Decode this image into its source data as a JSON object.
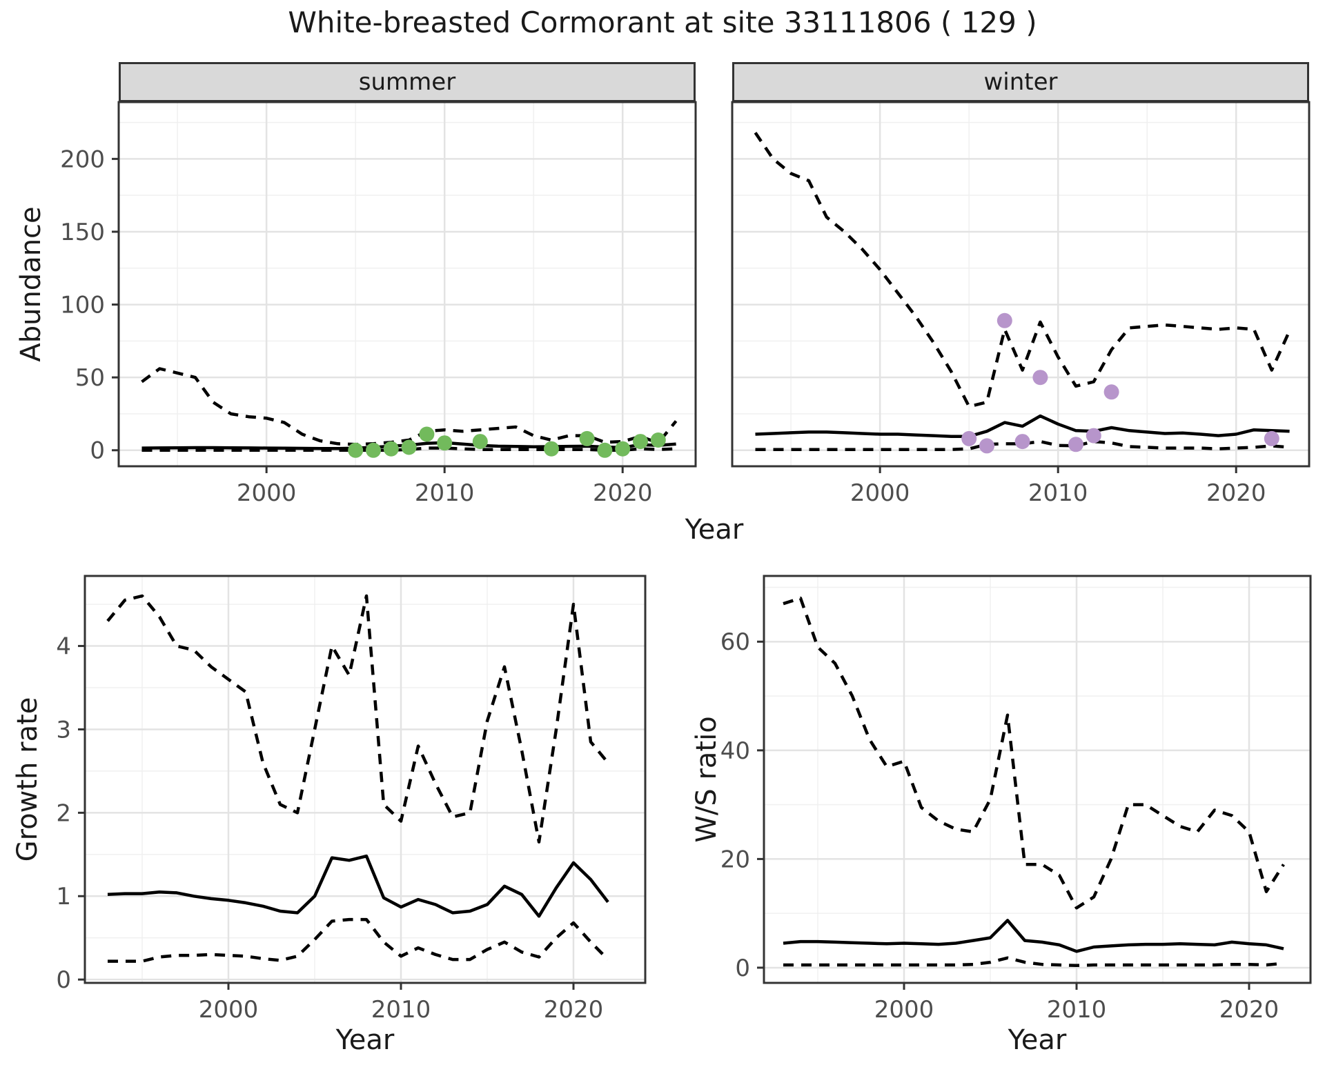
{
  "title": "White-breasted Cormorant at site 33111806 ( 129 )",
  "colors": {
    "line": "#000000",
    "summer_point": "#72BA5C",
    "winter_point": "#B795CB",
    "strip_bg": "#d9d9d9",
    "panel_border": "#333333",
    "grid_major": "#e3e3e3",
    "grid_minor": "#f0f0f0",
    "tick_text": "#4d4d4d"
  },
  "chart_data": [
    {
      "id": "abundance-summer",
      "type": "line",
      "facet_label": "summer",
      "xlabel": "Year",
      "ylabel": "Abundance",
      "xlim": [
        1991.7,
        2024.1
      ],
      "ylim": [
        -11,
        239
      ],
      "xticks": [
        2000,
        2010,
        2020
      ],
      "xticks_minor": [
        1995,
        2005,
        2015
      ],
      "yticks": [
        0,
        50,
        100,
        150,
        200
      ],
      "yticks_minor": [
        25,
        75,
        125,
        175,
        225
      ],
      "x": [
        1993,
        1994,
        1995,
        1996,
        1997,
        1998,
        1999,
        2000,
        2001,
        2002,
        2003,
        2004,
        2005,
        2006,
        2007,
        2008,
        2009,
        2010,
        2011,
        2012,
        2013,
        2014,
        2015,
        2016,
        2017,
        2018,
        2019,
        2020,
        2021,
        2022,
        2023
      ],
      "series": [
        {
          "name": "upper_credible",
          "style": "dashed",
          "values": [
            47,
            56,
            53,
            50,
            33,
            25,
            23,
            22,
            19,
            11,
            6.5,
            4.5,
            4,
            4.5,
            5.5,
            7,
            13,
            14,
            13,
            14,
            15,
            16,
            10,
            7,
            10,
            10,
            5.5,
            6,
            9.5,
            5,
            20
          ]
        },
        {
          "name": "median",
          "style": "solid",
          "values": [
            1.5,
            1.6,
            1.7,
            1.8,
            1.8,
            1.7,
            1.6,
            1.5,
            1.4,
            1.3,
            1.2,
            1.2,
            1.4,
            2,
            2.8,
            3.5,
            4.7,
            5.2,
            4.3,
            3.3,
            2.8,
            2.6,
            2.4,
            2.5,
            2.7,
            2.8,
            2.2,
            1.9,
            3.8,
            3.3,
            4.3
          ]
        },
        {
          "name": "lower_credible",
          "style": "dashed",
          "values": [
            0,
            0,
            0,
            0,
            0,
            0,
            0,
            0,
            0,
            0,
            0,
            0,
            0,
            0,
            0,
            0.5,
            1.5,
            1.5,
            1,
            0.5,
            0.5,
            0.5,
            0.5,
            0.5,
            0.5,
            0.5,
            0,
            0,
            1,
            0.5,
            1
          ]
        }
      ],
      "points": {
        "name": "observed_counts",
        "color": "#72BA5C",
        "data": [
          [
            2005,
            0
          ],
          [
            2006,
            0
          ],
          [
            2007,
            1
          ],
          [
            2008,
            2
          ],
          [
            2009,
            11
          ],
          [
            2010,
            5
          ],
          [
            2012,
            6
          ],
          [
            2016,
            1
          ],
          [
            2018,
            8
          ],
          [
            2019,
            0
          ],
          [
            2020,
            1
          ],
          [
            2021,
            6
          ],
          [
            2022,
            7
          ]
        ]
      }
    },
    {
      "id": "abundance-winter",
      "type": "line",
      "facet_label": "winter",
      "xlabel": "Year",
      "ylabel": "Abundance",
      "xlim": [
        1991.7,
        2024.1
      ],
      "ylim": [
        -11,
        239
      ],
      "xticks": [
        2000,
        2010,
        2020
      ],
      "xticks_minor": [
        1995,
        2005,
        2015
      ],
      "yticks": [
        0,
        50,
        100,
        150,
        200
      ],
      "yticks_minor": [
        25,
        75,
        125,
        175,
        225
      ],
      "x": [
        1993,
        1994,
        1995,
        1996,
        1997,
        1998,
        1999,
        2000,
        2001,
        2002,
        2003,
        2004,
        2005,
        2006,
        2007,
        2008,
        2009,
        2010,
        2011,
        2012,
        2013,
        2014,
        2015,
        2016,
        2017,
        2018,
        2019,
        2020,
        2021,
        2022,
        2023
      ],
      "series": [
        {
          "name": "upper_credible",
          "style": "dashed",
          "values": [
            218,
            200,
            190,
            185,
            160,
            150,
            138,
            124,
            108,
            92,
            74,
            54,
            30,
            33,
            83,
            55,
            88,
            64,
            44,
            47,
            69,
            84,
            85,
            86,
            85,
            84,
            83,
            84,
            83,
            55,
            82
          ]
        },
        {
          "name": "median",
          "style": "solid",
          "values": [
            11,
            11.5,
            12,
            12.5,
            12.5,
            12,
            11.5,
            11,
            11,
            10.5,
            10,
            9.5,
            9.5,
            13,
            19,
            16.5,
            23.5,
            18,
            13.5,
            13,
            15.5,
            13.5,
            12.5,
            11.5,
            11.8,
            11,
            10,
            11,
            14,
            13.5,
            13
          ]
        },
        {
          "name": "lower_credible",
          "style": "dashed",
          "values": [
            0.5,
            0.5,
            0.5,
            0.5,
            0.5,
            0.5,
            0.5,
            0.5,
            0.5,
            0.5,
            0.5,
            0.5,
            1,
            4,
            4.5,
            4.4,
            6,
            3.3,
            3,
            6,
            5,
            2.5,
            2,
            1.5,
            1.5,
            1.5,
            1,
            1.5,
            2,
            3,
            2
          ]
        }
      ],
      "points": {
        "name": "observed_counts",
        "color": "#B795CB",
        "data": [
          [
            2005,
            8
          ],
          [
            2006,
            3
          ],
          [
            2007,
            89
          ],
          [
            2008,
            6
          ],
          [
            2009,
            50
          ],
          [
            2011,
            4
          ],
          [
            2012,
            10
          ],
          [
            2013,
            40
          ],
          [
            2022,
            8
          ]
        ]
      }
    },
    {
      "id": "growth-rate",
      "type": "line",
      "facet_label": null,
      "xlabel": "Year",
      "ylabel": "Growth rate",
      "xlim": [
        1991.68,
        2024.16
      ],
      "ylim": [
        -0.04,
        4.84
      ],
      "xticks": [
        2000,
        2010,
        2020
      ],
      "xticks_minor": [
        1995,
        2005,
        2015
      ],
      "yticks": [
        0,
        1,
        2,
        3,
        4
      ],
      "yticks_minor": [
        0.5,
        1.5,
        2.5,
        3.5,
        4.5
      ],
      "x": [
        1993,
        1994,
        1995,
        1996,
        1997,
        1998,
        1999,
        2000,
        2001,
        2002,
        2003,
        2004,
        2005,
        2006,
        2007,
        2008,
        2009,
        2010,
        2011,
        2012,
        2013,
        2014,
        2015,
        2016,
        2017,
        2018,
        2019,
        2020,
        2021,
        2022
      ],
      "series": [
        {
          "name": "upper_credible",
          "style": "dashed",
          "values": [
            4.3,
            4.55,
            4.6,
            4.35,
            4.0,
            3.95,
            3.75,
            3.6,
            3.45,
            2.6,
            2.1,
            2.0,
            3.0,
            4.0,
            3.65,
            4.6,
            2.1,
            1.9,
            2.8,
            2.35,
            1.95,
            2.0,
            3.1,
            3.75,
            2.75,
            1.65,
            3.0,
            4.5,
            2.85,
            2.6
          ]
        },
        {
          "name": "median",
          "style": "solid",
          "values": [
            1.02,
            1.03,
            1.03,
            1.05,
            1.04,
            1.0,
            0.97,
            0.95,
            0.92,
            0.88,
            0.82,
            0.8,
            1.0,
            1.46,
            1.43,
            1.48,
            0.98,
            0.87,
            0.96,
            0.9,
            0.8,
            0.82,
            0.9,
            1.12,
            1.02,
            0.76,
            1.1,
            1.4,
            1.2,
            0.93
          ]
        },
        {
          "name": "lower_credible",
          "style": "dashed",
          "values": [
            0.22,
            0.22,
            0.22,
            0.27,
            0.29,
            0.29,
            0.3,
            0.29,
            0.28,
            0.25,
            0.23,
            0.28,
            0.48,
            0.7,
            0.72,
            0.72,
            0.45,
            0.28,
            0.38,
            0.3,
            0.24,
            0.24,
            0.36,
            0.45,
            0.33,
            0.27,
            0.5,
            0.68,
            0.45,
            0.24
          ]
        }
      ],
      "points": null
    },
    {
      "id": "ws-ratio",
      "type": "line",
      "facet_label": null,
      "xlabel": "Year",
      "ylabel": "W/S ratio",
      "xlim": [
        1991.88,
        2023.56
      ],
      "ylim": [
        -2.8,
        72.1
      ],
      "xticks": [
        2000,
        2010,
        2020
      ],
      "xticks_minor": [
        1995,
        2005,
        2015
      ],
      "yticks": [
        0,
        20,
        40,
        60
      ],
      "yticks_minor": [
        10,
        30,
        50,
        70
      ],
      "x": [
        1993,
        1994,
        1995,
        1996,
        1997,
        1998,
        1999,
        2000,
        2001,
        2002,
        2003,
        2004,
        2005,
        2006,
        2007,
        2008,
        2009,
        2010,
        2011,
        2012,
        2013,
        2014,
        2015,
        2016,
        2017,
        2018,
        2019,
        2020,
        2021,
        2022
      ],
      "series": [
        {
          "name": "upper_credible",
          "style": "dashed",
          "values": [
            67,
            68,
            59,
            56,
            50,
            42,
            37,
            38,
            29.5,
            27,
            25.5,
            25,
            31,
            46.5,
            19,
            19,
            17,
            11,
            13,
            20,
            30,
            30,
            28,
            26,
            25,
            29,
            28,
            25,
            14,
            19
          ]
        },
        {
          "name": "median",
          "style": "solid",
          "values": [
            4.5,
            4.8,
            4.8,
            4.7,
            4.6,
            4.5,
            4.4,
            4.5,
            4.4,
            4.3,
            4.5,
            5.0,
            5.5,
            8.7,
            5.0,
            4.7,
            4.2,
            3.0,
            3.8,
            4.0,
            4.2,
            4.3,
            4.3,
            4.4,
            4.3,
            4.2,
            4.7,
            4.4,
            4.2,
            3.5
          ]
        },
        {
          "name": "lower_credible",
          "style": "dashed",
          "values": [
            0.5,
            0.5,
            0.5,
            0.5,
            0.5,
            0.5,
            0.5,
            0.5,
            0.5,
            0.5,
            0.5,
            0.6,
            1.0,
            1.8,
            1.0,
            0.6,
            0.5,
            0.4,
            0.5,
            0.5,
            0.5,
            0.5,
            0.5,
            0.5,
            0.5,
            0.5,
            0.6,
            0.6,
            0.5,
            0.8
          ]
        }
      ],
      "points": null
    }
  ]
}
